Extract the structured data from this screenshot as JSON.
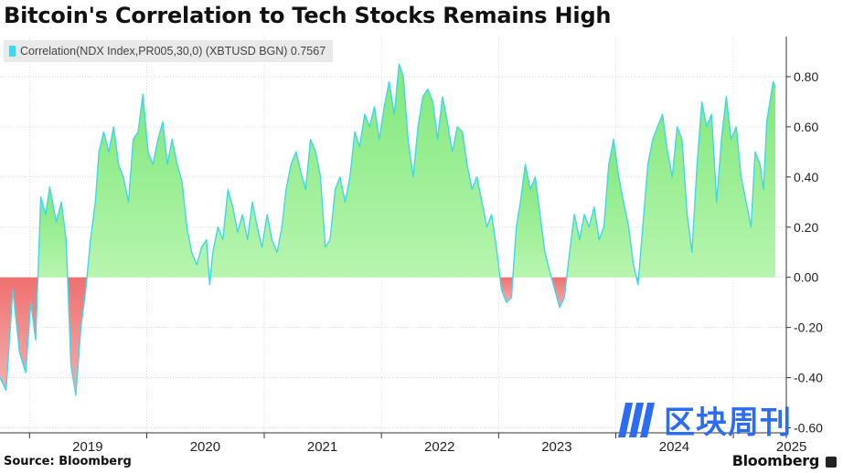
{
  "title": "Bitcoin's Correlation to Tech Stocks Remains High",
  "legend": {
    "label": "Correlation(NDX Index,PR005,30,0) (XBTUSD BGN) 0.7567"
  },
  "source": "Source: Bloomberg",
  "brand": "Bloomberg",
  "watermark": {
    "text": "区块周刊"
  },
  "colors": {
    "positive_fill": "#94f08c",
    "negative_fill": "#f07a7a",
    "line": "#3fd8e6",
    "watermark": "#2c6cf2"
  },
  "chart_data": {
    "type": "area",
    "title": "Bitcoin's Correlation to Tech Stocks Remains High",
    "series": [
      {
        "name": "Correlation(NDX Index,PR005,30,0) (XBTUSD BGN)",
        "last_value": 0.7567,
        "points": [
          [
            "2018-10-01",
            -0.4
          ],
          [
            "2018-10-20",
            -0.45
          ],
          [
            "2018-11-10",
            -0.05
          ],
          [
            "2018-12-01",
            -0.3
          ],
          [
            "2018-12-20",
            -0.38
          ],
          [
            "2019-01-05",
            -0.1
          ],
          [
            "2019-01-20",
            -0.25
          ],
          [
            "2019-02-05",
            0.32
          ],
          [
            "2019-02-20",
            0.25
          ],
          [
            "2019-03-05",
            0.36
          ],
          [
            "2019-03-25",
            0.22
          ],
          [
            "2019-04-10",
            0.3
          ],
          [
            "2019-04-25",
            0.15
          ],
          [
            "2019-05-10",
            -0.35
          ],
          [
            "2019-05-25",
            -0.47
          ],
          [
            "2019-06-10",
            -0.2
          ],
          [
            "2019-06-25",
            -0.05
          ],
          [
            "2019-07-10",
            0.15
          ],
          [
            "2019-07-25",
            0.3
          ],
          [
            "2019-08-05",
            0.5
          ],
          [
            "2019-08-20",
            0.58
          ],
          [
            "2019-09-05",
            0.5
          ],
          [
            "2019-09-20",
            0.6
          ],
          [
            "2019-10-05",
            0.45
          ],
          [
            "2019-10-20",
            0.4
          ],
          [
            "2019-11-05",
            0.3
          ],
          [
            "2019-11-20",
            0.55
          ],
          [
            "2019-12-05",
            0.58
          ],
          [
            "2019-12-20",
            0.73
          ],
          [
            "2020-01-05",
            0.5
          ],
          [
            "2020-01-20",
            0.45
          ],
          [
            "2020-02-05",
            0.55
          ],
          [
            "2020-02-20",
            0.62
          ],
          [
            "2020-03-05",
            0.45
          ],
          [
            "2020-03-20",
            0.55
          ],
          [
            "2020-04-05",
            0.45
          ],
          [
            "2020-04-20",
            0.38
          ],
          [
            "2020-05-05",
            0.2
          ],
          [
            "2020-05-20",
            0.1
          ],
          [
            "2020-06-05",
            0.05
          ],
          [
            "2020-06-20",
            0.12
          ],
          [
            "2020-07-05",
            0.15
          ],
          [
            "2020-07-15",
            -0.03
          ],
          [
            "2020-07-25",
            0.1
          ],
          [
            "2020-08-10",
            0.2
          ],
          [
            "2020-08-25",
            0.15
          ],
          [
            "2020-09-10",
            0.35
          ],
          [
            "2020-09-25",
            0.28
          ],
          [
            "2020-10-10",
            0.18
          ],
          [
            "2020-10-25",
            0.25
          ],
          [
            "2020-11-10",
            0.15
          ],
          [
            "2020-11-25",
            0.3
          ],
          [
            "2020-12-10",
            0.2
          ],
          [
            "2020-12-25",
            0.12
          ],
          [
            "2021-01-10",
            0.25
          ],
          [
            "2021-01-25",
            0.15
          ],
          [
            "2021-02-10",
            0.1
          ],
          [
            "2021-02-25",
            0.2
          ],
          [
            "2021-03-10",
            0.35
          ],
          [
            "2021-03-25",
            0.45
          ],
          [
            "2021-04-10",
            0.5
          ],
          [
            "2021-04-25",
            0.42
          ],
          [
            "2021-05-10",
            0.35
          ],
          [
            "2021-05-25",
            0.55
          ],
          [
            "2021-06-10",
            0.5
          ],
          [
            "2021-06-25",
            0.4
          ],
          [
            "2021-07-10",
            0.12
          ],
          [
            "2021-07-25",
            0.15
          ],
          [
            "2021-08-10",
            0.35
          ],
          [
            "2021-08-25",
            0.4
          ],
          [
            "2021-09-10",
            0.3
          ],
          [
            "2021-09-25",
            0.4
          ],
          [
            "2021-10-10",
            0.58
          ],
          [
            "2021-10-25",
            0.52
          ],
          [
            "2021-11-10",
            0.65
          ],
          [
            "2021-11-25",
            0.6
          ],
          [
            "2021-12-10",
            0.68
          ],
          [
            "2021-12-25",
            0.55
          ],
          [
            "2022-01-10",
            0.68
          ],
          [
            "2022-01-25",
            0.78
          ],
          [
            "2022-02-10",
            0.65
          ],
          [
            "2022-02-25",
            0.85
          ],
          [
            "2022-03-10",
            0.8
          ],
          [
            "2022-03-25",
            0.55
          ],
          [
            "2022-04-10",
            0.4
          ],
          [
            "2022-04-25",
            0.6
          ],
          [
            "2022-05-10",
            0.72
          ],
          [
            "2022-05-25",
            0.75
          ],
          [
            "2022-06-10",
            0.7
          ],
          [
            "2022-06-25",
            0.55
          ],
          [
            "2022-07-10",
            0.72
          ],
          [
            "2022-07-25",
            0.62
          ],
          [
            "2022-08-10",
            0.5
          ],
          [
            "2022-08-25",
            0.6
          ],
          [
            "2022-09-10",
            0.58
          ],
          [
            "2022-09-25",
            0.45
          ],
          [
            "2022-10-10",
            0.35
          ],
          [
            "2022-10-25",
            0.4
          ],
          [
            "2022-11-10",
            0.3
          ],
          [
            "2022-11-25",
            0.2
          ],
          [
            "2022-12-10",
            0.25
          ],
          [
            "2022-12-25",
            0.12
          ],
          [
            "2023-01-10",
            -0.05
          ],
          [
            "2023-01-25",
            -0.1
          ],
          [
            "2023-02-10",
            -0.08
          ],
          [
            "2023-02-25",
            0.2
          ],
          [
            "2023-03-10",
            0.3
          ],
          [
            "2023-03-25",
            0.45
          ],
          [
            "2023-04-10",
            0.35
          ],
          [
            "2023-04-25",
            0.4
          ],
          [
            "2023-05-10",
            0.25
          ],
          [
            "2023-05-25",
            0.1
          ],
          [
            "2023-06-10",
            0.02
          ],
          [
            "2023-06-25",
            -0.05
          ],
          [
            "2023-07-10",
            -0.12
          ],
          [
            "2023-07-25",
            -0.08
          ],
          [
            "2023-08-10",
            0.1
          ],
          [
            "2023-08-25",
            0.25
          ],
          [
            "2023-09-10",
            0.15
          ],
          [
            "2023-09-25",
            0.25
          ],
          [
            "2023-10-10",
            0.2
          ],
          [
            "2023-10-25",
            0.28
          ],
          [
            "2023-11-10",
            0.15
          ],
          [
            "2023-11-25",
            0.2
          ],
          [
            "2023-12-10",
            0.45
          ],
          [
            "2023-12-25",
            0.55
          ],
          [
            "2024-01-10",
            0.4
          ],
          [
            "2024-01-25",
            0.3
          ],
          [
            "2024-02-10",
            0.2
          ],
          [
            "2024-02-25",
            0.05
          ],
          [
            "2024-03-10",
            -0.03
          ],
          [
            "2024-03-25",
            0.2
          ],
          [
            "2024-04-10",
            0.45
          ],
          [
            "2024-04-25",
            0.55
          ],
          [
            "2024-05-10",
            0.6
          ],
          [
            "2024-05-25",
            0.65
          ],
          [
            "2024-06-10",
            0.5
          ],
          [
            "2024-06-25",
            0.4
          ],
          [
            "2024-07-10",
            0.6
          ],
          [
            "2024-07-25",
            0.55
          ],
          [
            "2024-08-10",
            0.25
          ],
          [
            "2024-08-25",
            0.1
          ],
          [
            "2024-09-10",
            0.45
          ],
          [
            "2024-09-25",
            0.7
          ],
          [
            "2024-10-10",
            0.6
          ],
          [
            "2024-10-25",
            0.65
          ],
          [
            "2024-11-10",
            0.3
          ],
          [
            "2024-11-25",
            0.55
          ],
          [
            "2024-12-10",
            0.72
          ],
          [
            "2024-12-25",
            0.55
          ],
          [
            "2025-01-10",
            0.6
          ],
          [
            "2025-01-25",
            0.4
          ],
          [
            "2025-02-10",
            0.3
          ],
          [
            "2025-02-25",
            0.2
          ],
          [
            "2025-03-10",
            0.5
          ],
          [
            "2025-03-25",
            0.45
          ],
          [
            "2025-04-05",
            0.35
          ],
          [
            "2025-04-15",
            0.62
          ],
          [
            "2025-04-25",
            0.7
          ],
          [
            "2025-05-05",
            0.78
          ],
          [
            "2025-05-12",
            0.7567
          ]
        ]
      }
    ],
    "x_ticks": [
      "2019",
      "2020",
      "2021",
      "2022",
      "2023",
      "2024",
      "2025"
    ],
    "y_ticks": [
      0.8,
      0.6,
      0.4,
      0.2,
      0.0,
      -0.2,
      -0.4,
      -0.6
    ],
    "xlim": [
      "2018-10-01",
      "2025-06-15"
    ],
    "ylim": [
      -0.62,
      0.96
    ],
    "ylabel": "",
    "xlabel": "",
    "grid": true,
    "y_axis_side": "right",
    "legend_position": "top-left"
  }
}
